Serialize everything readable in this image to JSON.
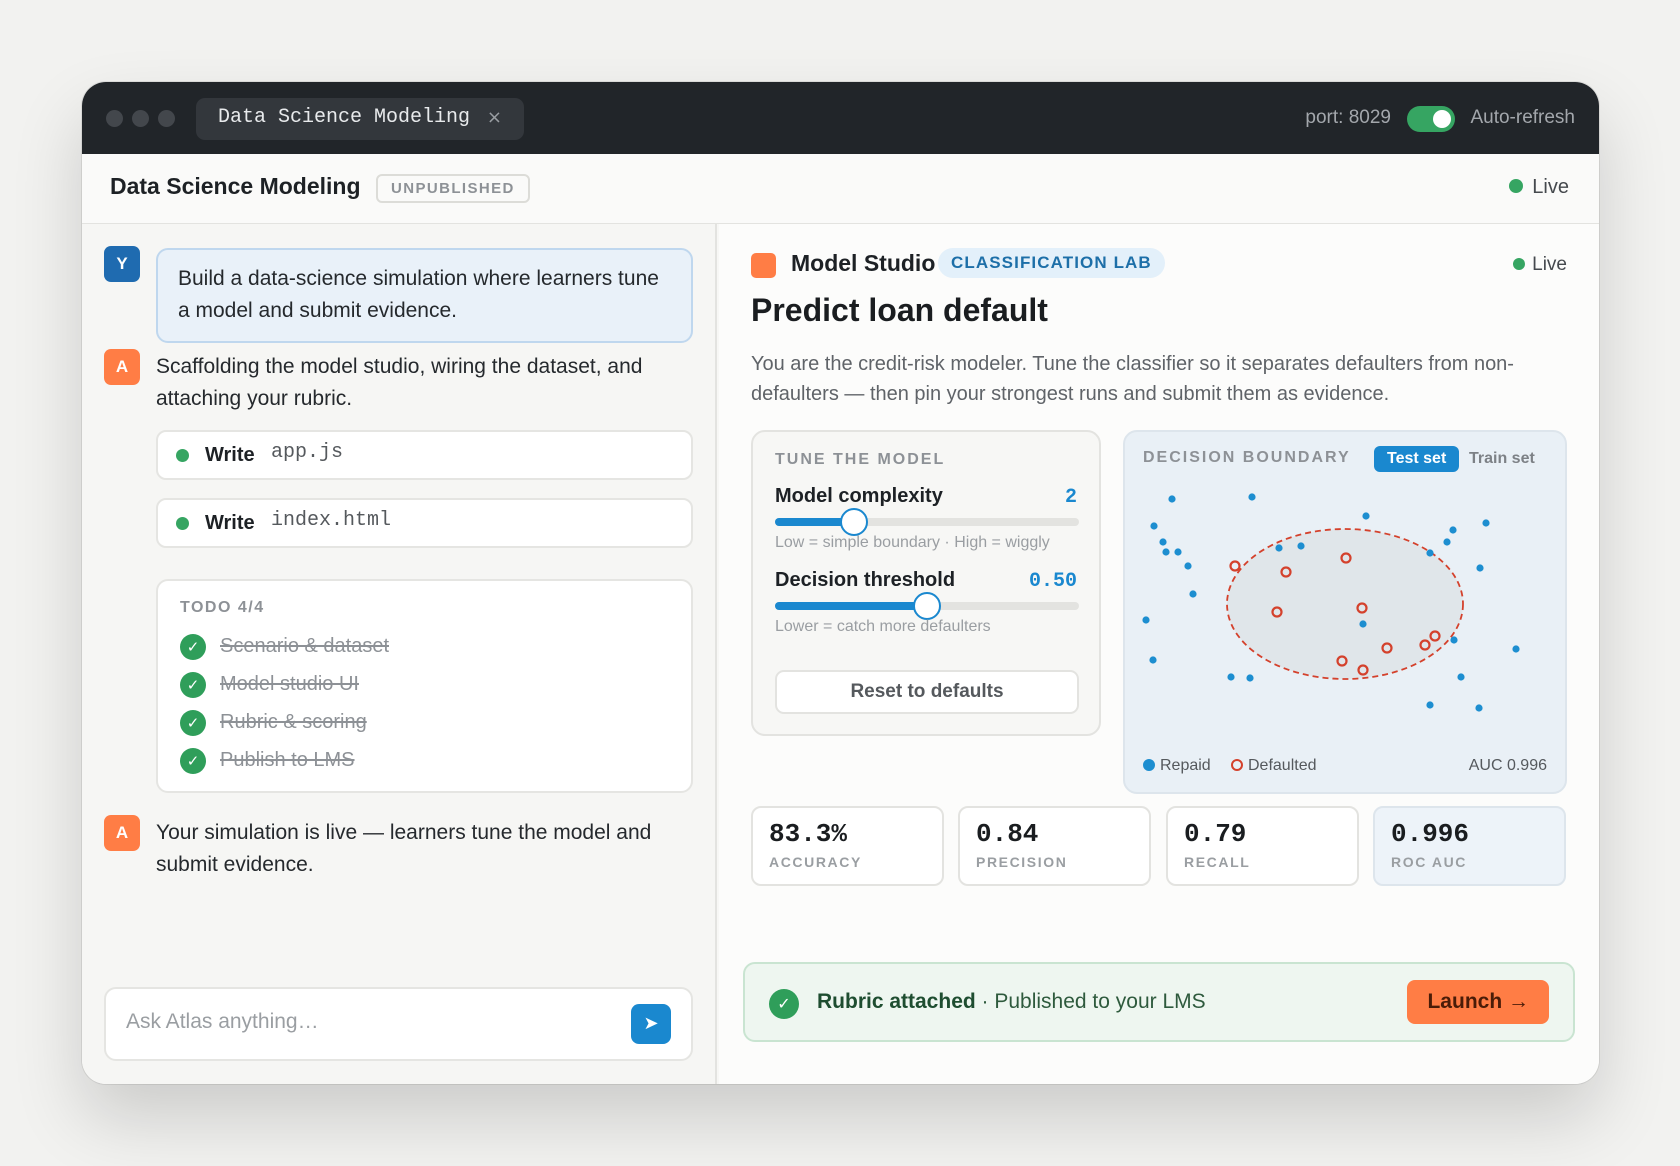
{
  "titlebar": {
    "tab_title": "Data Science Modeling",
    "close_glyph": "×",
    "port": "port: 8029",
    "auto_refresh_label": "Auto-refresh",
    "auto_refresh_on": true
  },
  "appbar": {
    "title": "Data Science Modeling",
    "status_badge": "UNPUBLISHED",
    "live_label": "Live"
  },
  "chat": {
    "user_avatar": "Y",
    "assistant_avatar": "A",
    "user_message": "Build a data-science simulation where learners tune a model and submit evidence.",
    "assistant_message_1": "Scaffolding the model studio, wiring the dataset, and attaching your rubric.",
    "tool_calls": [
      {
        "action": "Write",
        "file": "app.js"
      },
      {
        "action": "Write",
        "file": "index.html"
      }
    ],
    "todo": {
      "title": "TODO 4/4",
      "check_glyph": "✓",
      "items": [
        "Scenario & dataset",
        "Model studio UI",
        "Rubric & scoring",
        "Publish to LMS"
      ]
    },
    "assistant_message_2": "Your simulation is live — learners tune the model and submit evidence.",
    "input_placeholder": "Ask Atlas anything…",
    "send_glyph": "➤"
  },
  "studio": {
    "title": "Model Studio",
    "badge": "CLASSIFICATION LAB",
    "live_label": "Live",
    "heading": "Predict loan default",
    "description": "You are the credit-risk modeler. Tune the classifier so it separates defaulters from non-defaulters — then pin your strongest runs and submit them as evidence.",
    "tune": {
      "caption": "TUNE THE MODEL",
      "complexity": {
        "label": "Model complexity",
        "value": "2",
        "fraction": 0.26,
        "hint": "Low = simple boundary · High = wiggly"
      },
      "threshold": {
        "label": "Decision threshold",
        "value": "0.50",
        "fraction": 0.5,
        "hint": "Lower = catch more defaulters"
      },
      "reset_label": "Reset to defaults"
    },
    "boundary": {
      "caption": "DECISION BOUNDARY",
      "toggle_active": "Test set",
      "toggle_inactive": "Train set",
      "legend_repaid": "Repaid",
      "legend_defaulted": "Defaulted",
      "auc": "AUC 0.996"
    },
    "metrics": [
      {
        "value": "83.3%",
        "label": "ACCURACY"
      },
      {
        "value": "0.84",
        "label": "PRECISION"
      },
      {
        "value": "0.79",
        "label": "RECALL"
      },
      {
        "value": "0.996",
        "label": "ROC AUC"
      }
    ],
    "toast": {
      "strong": "Rubric attached",
      "rest": " · Published to your LMS",
      "check_glyph": "✓",
      "launch_label": "Launch →"
    }
  },
  "colors": {
    "accent_blue": "#1a88cf",
    "brand_orange": "#ff7d45",
    "success_green": "#36a562",
    "defaulted_red": "#d4412c"
  },
  "icons": [
    "close-icon",
    "send-icon",
    "check-icon",
    "status-dot-icon"
  ]
}
